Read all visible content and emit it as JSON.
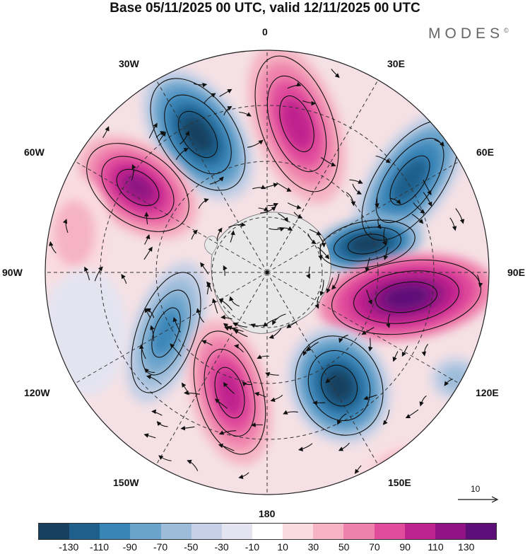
{
  "title": "Base 05/11/2025 00 UTC, valid 12/11/2025 00 UTC",
  "brand": {
    "text": "MODES",
    "mark": "©"
  },
  "longitude_labels": {
    "n0": "0",
    "e30": "30E",
    "e60": "60E",
    "e90": "90E",
    "e120": "120E",
    "e150": "150E",
    "s180": "180",
    "w150": "150W",
    "w120": "120W",
    "w90": "90W",
    "w60": "60W",
    "w30": "30W"
  },
  "reference_vector": {
    "label": "10"
  },
  "colorbar": {
    "colors": [
      "#17405f",
      "#1f5f8b",
      "#3a85b8",
      "#6aa3cb",
      "#9cbcd9",
      "#c6d0e6",
      "#e4e4f1",
      "#ffffff",
      "#fadbe0",
      "#f5b3c3",
      "#ef82ac",
      "#e04c9b",
      "#bf238d",
      "#8f1383",
      "#5d0e78"
    ],
    "labels": [
      "-130",
      "-110",
      "-90",
      "-70",
      "-50",
      "-30",
      "-10",
      "10",
      "30",
      "50",
      "70",
      "90",
      "110",
      "130"
    ]
  },
  "map_colors": {
    "ocean_background": "#f7dfe4",
    "antarctica": "#e8e8e8",
    "graticule": "#333333",
    "streamline": "#111111"
  }
}
